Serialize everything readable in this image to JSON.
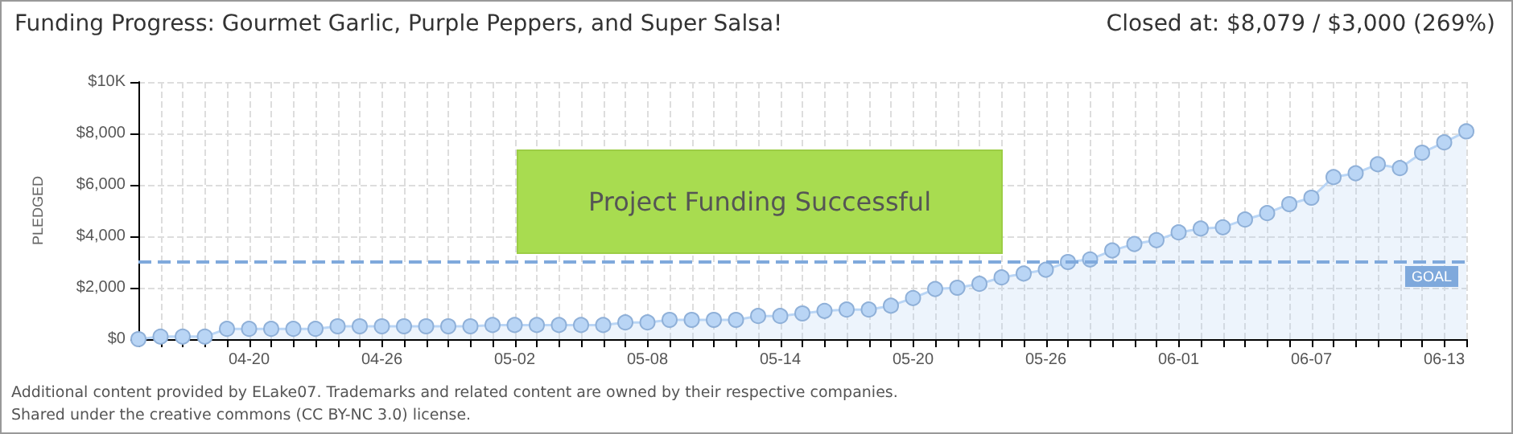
{
  "chart_data": {
    "type": "area",
    "title": "Funding Progress: Gourmet Garlic, Purple Peppers, and Super Salsa!",
    "subtitle": "Closed at: $8,079 / $3,000 (269%)",
    "ylabel": "PLEDGED",
    "annotations": [
      "Project Funding Successful",
      "Additional content provided by ELake07. Trademarks and related content are owned by their respective companies.",
      "Shared under the creative commons (CC BY-NC 3.0) license."
    ],
    "categories": [
      null,
      null,
      null,
      null,
      null,
      "04-20",
      null,
      null,
      null,
      null,
      null,
      "04-26",
      null,
      null,
      null,
      null,
      null,
      "05-02",
      null,
      null,
      null,
      null,
      null,
      "05-08",
      null,
      null,
      null,
      null,
      null,
      "05-14",
      null,
      null,
      null,
      null,
      null,
      "05-20",
      null,
      null,
      null,
      null,
      null,
      "05-26",
      null,
      null,
      null,
      null,
      null,
      "06-01",
      null,
      null,
      null,
      null,
      null,
      "06-07",
      null,
      null,
      null,
      null,
      null,
      "06-13",
      null
    ],
    "series": [
      {
        "color": "#b9d5f5",
        "values": [
          0,
          100,
          100,
          100,
          400,
          400,
          400,
          400,
          400,
          500,
          500,
          500,
          500,
          500,
          500,
          500,
          550,
          550,
          550,
          550,
          550,
          550,
          650,
          650,
          750,
          750,
          750,
          750,
          900,
          900,
          1000,
          1100,
          1150,
          1150,
          1300,
          1600,
          1950,
          2000,
          2150,
          2400,
          2550,
          2700,
          3000,
          3100,
          3450,
          3700,
          3850,
          4150,
          4300,
          4350,
          4650,
          4900,
          5250,
          5500,
          6300,
          6450,
          6800,
          6650,
          7250,
          7650,
          8079
        ]
      }
    ],
    "ylim": [
      0,
      10000
    ],
    "yticks": [
      {
        "value": 0,
        "label": "$0"
      },
      {
        "value": 2000,
        "label": "$2,000"
      },
      {
        "value": 4000,
        "label": "$4,000"
      },
      {
        "value": 6000,
        "label": "$6,000"
      },
      {
        "value": 8000,
        "label": "$8,000"
      },
      {
        "value": 10000,
        "label": "$10K"
      }
    ],
    "ref_lines": [
      {
        "axis": "y",
        "value": 3000,
        "label": "GOAL",
        "color": "#7fa9dc",
        "line_style": "dashed"
      }
    ],
    "grid": true,
    "marker": "circle",
    "line_style": "solid"
  }
}
